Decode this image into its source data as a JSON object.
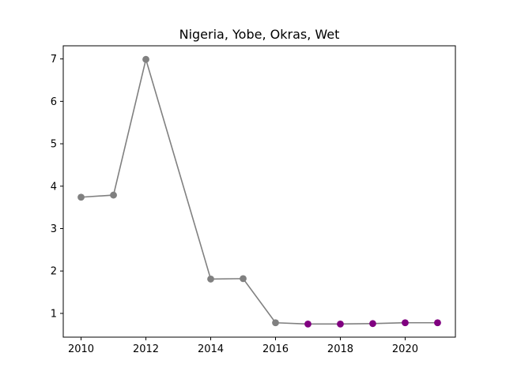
{
  "chart_data": {
    "type": "line",
    "title": "Nigeria, Yobe, Okras, Wet",
    "xlabel": "",
    "ylabel": "",
    "xlim": [
      2009.45,
      2021.55
    ],
    "ylim": [
      0.44,
      7.31
    ],
    "x_ticks": [
      2010,
      2012,
      2014,
      2016,
      2018,
      2020
    ],
    "y_ticks": [
      1,
      2,
      3,
      4,
      5,
      6,
      7
    ],
    "grid": false,
    "line_color": "#808080",
    "points": [
      {
        "x": 2010,
        "y": 3.74,
        "color": "#808080"
      },
      {
        "x": 2011,
        "y": 3.79,
        "color": "#808080"
      },
      {
        "x": 2012,
        "y": 6.99,
        "color": "#808080"
      },
      {
        "x": 2014,
        "y": 1.81,
        "color": "#808080"
      },
      {
        "x": 2015,
        "y": 1.82,
        "color": "#808080"
      },
      {
        "x": 2016,
        "y": 0.78,
        "color": "#808080"
      },
      {
        "x": 2017,
        "y": 0.75,
        "color": "#800080"
      },
      {
        "x": 2018,
        "y": 0.75,
        "color": "#800080"
      },
      {
        "x": 2019,
        "y": 0.76,
        "color": "#800080"
      },
      {
        "x": 2020,
        "y": 0.78,
        "color": "#800080"
      },
      {
        "x": 2021,
        "y": 0.78,
        "color": "#800080"
      }
    ]
  }
}
